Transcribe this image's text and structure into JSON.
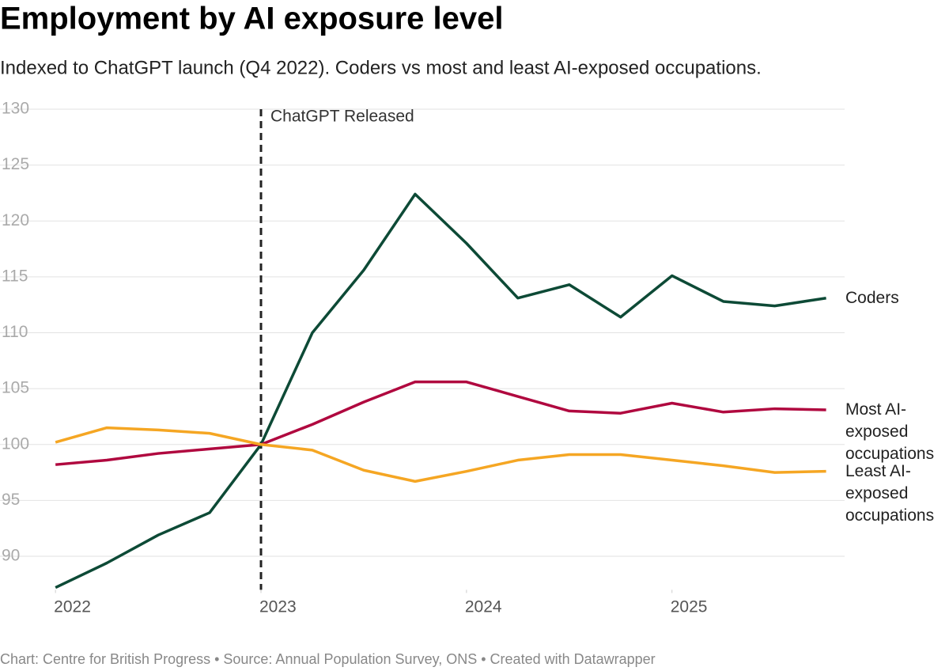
{
  "chart_data": {
    "type": "line",
    "title": "Employment by AI exposure level",
    "subtitle": "Indexed to ChatGPT launch (Q4 2022). Coders vs most and least AI-exposed occupations.",
    "source": "Chart: Centre for British Progress • Source: Annual Population Survey, ONS • Created with Datawrapper",
    "x": [
      2022,
      2022.25,
      2022.5,
      2022.75,
      2023,
      2023.25,
      2023.5,
      2023.75,
      2024,
      2024.25,
      2024.5,
      2024.75,
      2025,
      2025.25,
      2025.5,
      2025.75
    ],
    "xlim": [
      2021.73,
      2025.84
    ],
    "xticks": [
      2022,
      2023,
      2024,
      2025
    ],
    "ylim": [
      87,
      130
    ],
    "yticks": [
      90,
      95,
      100,
      105,
      110,
      115,
      120,
      125,
      130
    ],
    "grid": true,
    "events": [
      {
        "x": 2023,
        "label": "ChatGPT Released"
      }
    ],
    "series": [
      {
        "name": "Coders",
        "color": "#0d4a36",
        "values": [
          87.2,
          89.4,
          91.9,
          93.9,
          100,
          110.0,
          115.6,
          122.4,
          118.0,
          113.1,
          114.3,
          111.4,
          115.1,
          112.8,
          112.4,
          113.1
        ]
      },
      {
        "name": "Most AI-exposed occupations",
        "color": "#b0083f",
        "values": [
          98.2,
          98.6,
          99.2,
          99.6,
          100,
          101.8,
          103.8,
          105.6,
          105.6,
          104.3,
          103.0,
          102.8,
          103.7,
          102.9,
          103.2,
          103.1
        ]
      },
      {
        "name": "Least AI-exposed occupations",
        "color": "#f5a623",
        "values": [
          100.2,
          101.5,
          101.3,
          101.0,
          100,
          99.5,
          97.7,
          96.7,
          97.6,
          98.6,
          99.1,
          99.1,
          98.6,
          98.1,
          97.5,
          97.6
        ]
      }
    ]
  }
}
